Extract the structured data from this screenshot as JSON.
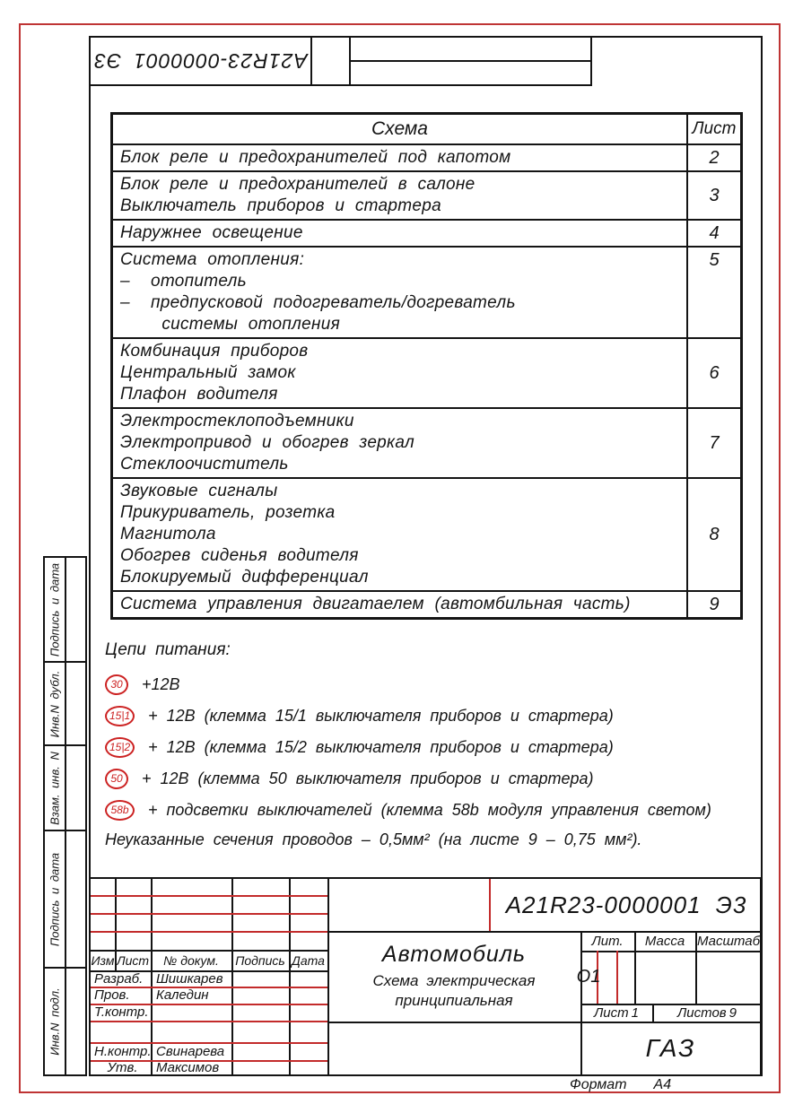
{
  "colors": {
    "accent_red": "#cc2222",
    "frame_red": "#bf3434",
    "line_black": "#141414"
  },
  "top_block": {
    "designation_rotated": "А21R23-0000001 Э3"
  },
  "sheet_table": {
    "header": {
      "schema": "Схема",
      "sheet": "Лист"
    },
    "rows": [
      {
        "lines": [
          "Блок реле и предохранителей под капотом"
        ],
        "sheet": "2"
      },
      {
        "lines": [
          "Блок реле и предохранителей в салоне",
          "Выключатель приборов и стартера"
        ],
        "sheet": "3"
      },
      {
        "lines": [
          "Наружнее освещение"
        ],
        "sheet": "4"
      },
      {
        "lines": [
          "Система отопления:",
          "–  отопитель",
          "–  предпусковой подогреватель/догреватель",
          "    системы отопления"
        ],
        "sheet": "5",
        "sheet_top": true
      },
      {
        "lines": [
          "Комбинация приборов",
          "Центральный замок",
          "Плафон водителя"
        ],
        "sheet": "6"
      },
      {
        "lines": [
          "Электростеклоподъемники",
          "Электропривод и обогрев зеркал",
          "Стеклоочиститель"
        ],
        "sheet": "7"
      },
      {
        "lines": [
          "Звуковые сигналы",
          "Прикуриватель, розетка",
          "Магнитола",
          "Обогрев сиденья водителя",
          "Блокируемый дифференциал"
        ],
        "sheet": "8"
      },
      {
        "lines": [
          "Система управления двигатаелем (автомбильная часть)"
        ],
        "sheet": "9"
      }
    ]
  },
  "power_circuits": {
    "title": "Цепи питания:",
    "items": [
      {
        "badge": "30",
        "text": "+12В"
      },
      {
        "badge": "15|1",
        "text": "+ 12В (клемма 15/1 выключателя приборов и стартера)"
      },
      {
        "badge": "15|2",
        "text": "+ 12В (клемма 15/2 выключателя приборов и стартера)"
      },
      {
        "badge": "50",
        "text": "+ 12В (клемма 50 выключателя приборов и стартера)"
      },
      {
        "badge": "58b",
        "text": "+ подсветки выключателей (клемма 58b модуля управления светом)"
      }
    ],
    "note": "Неуказанные сечения проводов – 0,5мм² (на листе 9 – 0,75 мм²)."
  },
  "title_block": {
    "designation": "А21R23-0000001 Э3",
    "product": "Автомобиль",
    "doc_type_line1": "Схема электрическая",
    "doc_type_line2": "принципиальная",
    "rev_headers": {
      "izm": "Изм",
      "list": "Лист",
      "dokum": "№ докум.",
      "podpis": "Подпись",
      "data": "Дата"
    },
    "signatures": [
      {
        "role": "Разраб.",
        "name": "Шишкарев"
      },
      {
        "role": "Пров.",
        "name": "Каледин"
      },
      {
        "role": "Т.контр.",
        "name": ""
      },
      {
        "role": "",
        "name": ""
      },
      {
        "role": "Н.контр.",
        "name": "Свинарева"
      },
      {
        "role": "Утв.",
        "name": "Максимов"
      }
    ],
    "lit_label": "Лит.",
    "massa_label": "Масса",
    "masshtab_label": "Масштаб",
    "litera": "О1",
    "sheet_label": "Лист",
    "sheet_value": "1",
    "sheets_label": "Листов",
    "sheets_value": "9",
    "company": "ГАЗ",
    "format_label": "Формат",
    "format_value": "А4"
  },
  "sidebar": {
    "labels": [
      "Подпись и дата",
      "Инв.N дубл.",
      "Взам. инв. N",
      "Подпись и дата",
      "Инв.N подл."
    ]
  }
}
